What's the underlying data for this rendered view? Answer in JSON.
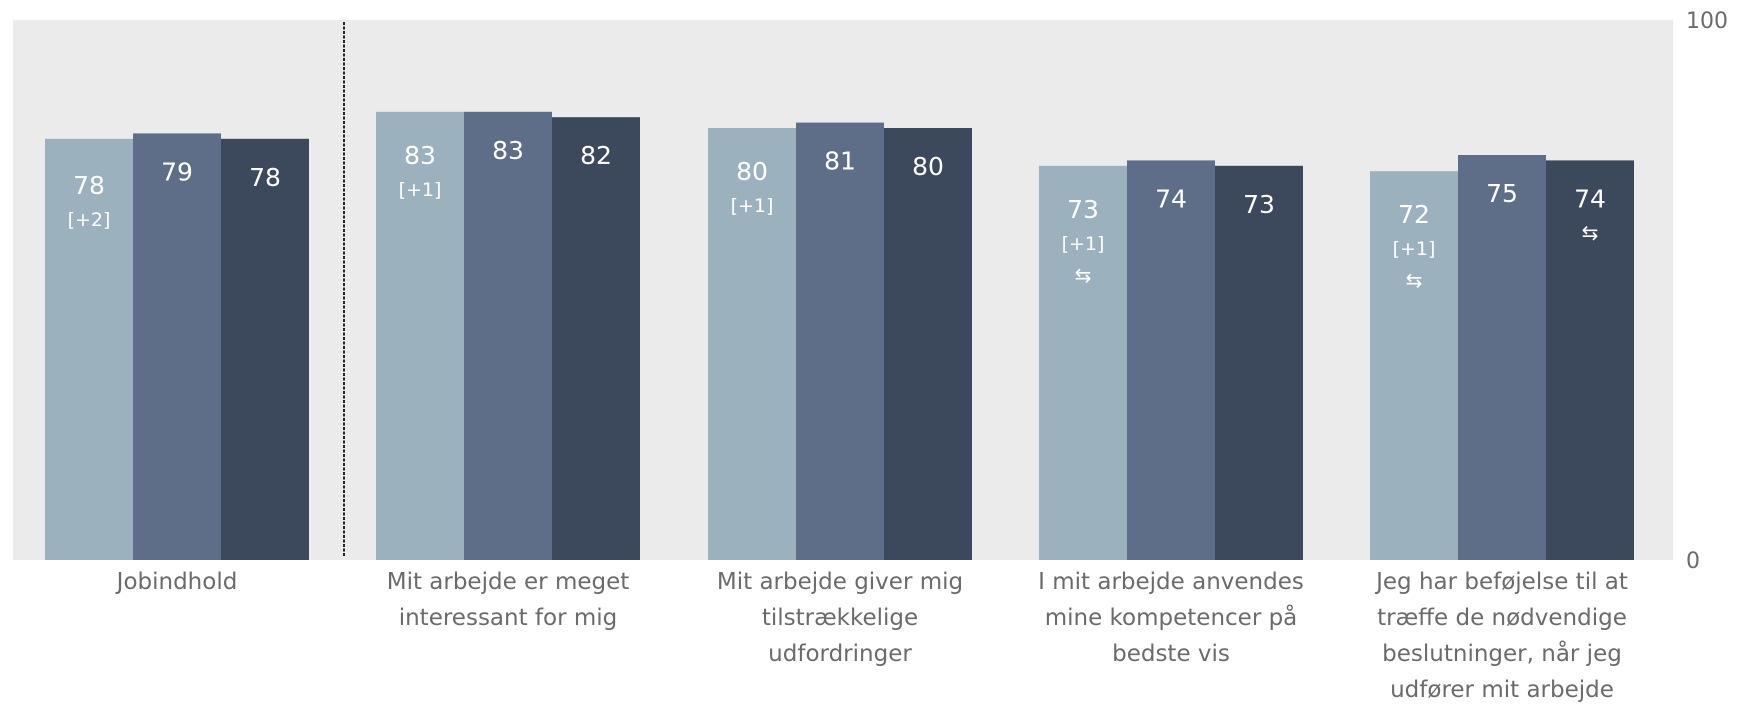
{
  "chart_data": {
    "type": "bar",
    "ylim": [
      0,
      100
    ],
    "y_axis_ticks": [
      "0",
      "100"
    ],
    "y_axis_position": "right",
    "background": "#ebebeb",
    "colors": [
      "#9bb1bd",
      "#5e6e89",
      "#3c495c"
    ],
    "categories": [
      {
        "lines": [
          "Jobindhold"
        ]
      },
      {
        "lines": [
          "Mit arbejde er meget",
          "interessant for mig"
        ]
      },
      {
        "lines": [
          "Mit arbejde giver mig",
          "tilstrækkelige",
          "udfordringer"
        ]
      },
      {
        "lines": [
          "I mit arbejde anvendes",
          "mine kompetencer på",
          "bedste vis"
        ]
      },
      {
        "lines": [
          "Jeg har beføjelse til at",
          "træffe de nødvendige",
          "beslutninger, når jeg",
          "udfører mit arbejde"
        ]
      }
    ],
    "series": [
      {
        "values": [
          78,
          83,
          80,
          73,
          72
        ],
        "labels": [
          "78",
          "83",
          "80",
          "73",
          "72"
        ],
        "change": [
          "[+2]",
          "[+1]",
          "[+1]",
          "[+1]",
          "[+1]"
        ],
        "arrow": [
          false,
          false,
          false,
          true,
          true
        ]
      },
      {
        "values": [
          79,
          83,
          81,
          74,
          75
        ],
        "labels": [
          "79",
          "83",
          "81",
          "74",
          "75"
        ],
        "change": [
          "",
          "",
          "",
          "",
          ""
        ],
        "arrow": [
          false,
          false,
          false,
          false,
          false
        ]
      },
      {
        "values": [
          78,
          82,
          80,
          73,
          74
        ],
        "labels": [
          "78",
          "82",
          "80",
          "73",
          "74"
        ],
        "change": [
          "",
          "",
          "",
          "",
          ""
        ],
        "arrow": [
          false,
          false,
          false,
          false,
          true
        ]
      }
    ],
    "arrow_glyph": "⇆",
    "divider_after_category": 0
  }
}
